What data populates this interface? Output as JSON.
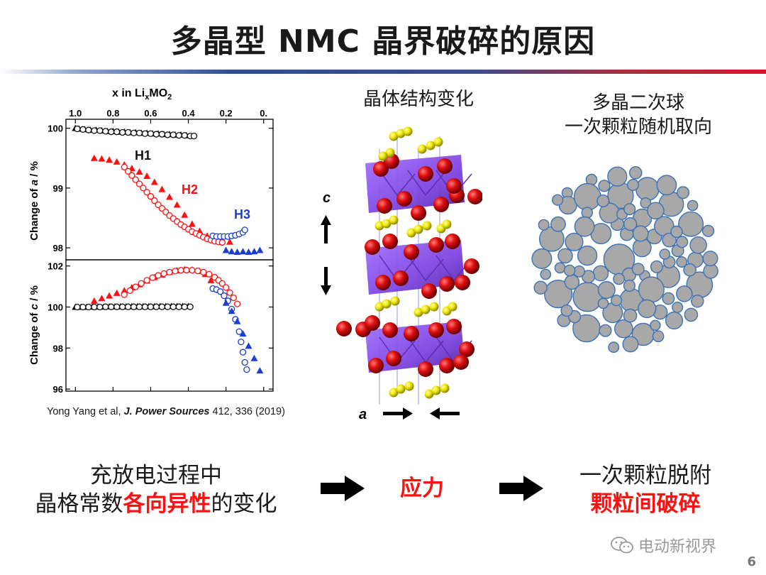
{
  "page": {
    "title": "多晶型 NMC 晶界破碎的原因",
    "page_number": "6"
  },
  "headings": {
    "crystal": "晶体结构变化",
    "poly_line1": "多晶二次球",
    "poly_line2": "一次颗粒随机取向"
  },
  "crystal_labels": {
    "c": "c",
    "a": "a"
  },
  "citation": {
    "authors": "Yong Yang et al, ",
    "journal": "J. Power Sources",
    "details": " 412, 336 (2019)"
  },
  "bottom": {
    "left_line1": "充放电过程中",
    "left_line2_pre": "晶格常数",
    "left_line2_red": "各向异性",
    "left_line2_post": "的变化",
    "middle": "应力",
    "right_line1": "一次颗粒脱附",
    "right_line2": "颗粒间破碎"
  },
  "watermark": "电动新视界",
  "colors": {
    "red": "#ff1010",
    "black_series": "#111111",
    "blue": "#1a3fd0",
    "sphere_fill": "#a8a8a8",
    "sphere_stroke": "#3a72b8"
  },
  "chart_data": [
    {
      "type": "scatter",
      "title": "",
      "top_axis_label_parts": [
        "x in Li",
        "x",
        "MO",
        "2"
      ],
      "x_ticks": [
        1.0,
        0.8,
        0.6,
        0.4,
        0.2,
        0.0
      ],
      "x_tick_labels": [
        "1.0",
        "0.8",
        "0.6",
        "0.4",
        "0.2",
        "0."
      ],
      "xlim": [
        1.05,
        -0.05
      ],
      "ylabel_parts": [
        "Change of ",
        "a",
        " / %"
      ],
      "ylim": [
        97.8,
        100.15
      ],
      "y_ticks": [
        98,
        99,
        100
      ],
      "annotations": [
        "H1",
        "H2",
        "H3"
      ],
      "series": [
        {
          "name": "H1",
          "marker": "triangle-filled",
          "color": "black",
          "x": [
            1.0,
            0.98,
            0.95,
            0.92,
            0.89,
            0.86,
            0.83,
            0.8,
            0.77,
            0.74,
            0.71,
            0.68,
            0.65,
            0.62,
            0.59,
            0.56,
            0.53,
            0.5,
            0.47,
            0.44,
            0.41
          ],
          "y": [
            100.0,
            99.99,
            99.98,
            99.97,
            99.97,
            99.96,
            99.95,
            99.95,
            99.94,
            99.94,
            99.93,
            99.93,
            99.92,
            99.92,
            99.91,
            99.91,
            99.9,
            99.9,
            99.89,
            99.89,
            99.88
          ]
        },
        {
          "name": "H1",
          "marker": "circle-open",
          "color": "black",
          "x": [
            0.99,
            0.96,
            0.93,
            0.9,
            0.87,
            0.84,
            0.81,
            0.78,
            0.75,
            0.72,
            0.69,
            0.66,
            0.63,
            0.6,
            0.57,
            0.54,
            0.51,
            0.48,
            0.45,
            0.42,
            0.39,
            0.37
          ],
          "y": [
            99.99,
            99.98,
            99.97,
            99.96,
            99.96,
            99.95,
            99.94,
            99.94,
            99.93,
            99.93,
            99.92,
            99.92,
            99.91,
            99.91,
            99.9,
            99.9,
            99.89,
            99.89,
            99.88,
            99.88,
            99.87,
            99.87
          ]
        },
        {
          "name": "H2",
          "marker": "triangle-filled",
          "color": "red",
          "x": [
            0.9,
            0.86,
            0.82,
            0.78,
            0.74,
            0.7,
            0.66,
            0.62,
            0.58,
            0.54,
            0.5,
            0.46,
            0.42,
            0.38,
            0.34,
            0.3,
            0.26,
            0.22,
            0.18
          ],
          "y": [
            99.5,
            99.49,
            99.47,
            99.44,
            99.39,
            99.33,
            99.27,
            99.2,
            99.1,
            98.98,
            98.85,
            98.72,
            98.55,
            98.4,
            98.28,
            98.2,
            98.15,
            98.12,
            98.1
          ]
        },
        {
          "name": "H2",
          "marker": "circle-open",
          "color": "red",
          "x": [
            0.74,
            0.72,
            0.7,
            0.68,
            0.66,
            0.64,
            0.62,
            0.6,
            0.58,
            0.56,
            0.54,
            0.52,
            0.5,
            0.48,
            0.46,
            0.44,
            0.42,
            0.4,
            0.38,
            0.36,
            0.34,
            0.32,
            0.3,
            0.28,
            0.26,
            0.24,
            0.22
          ],
          "y": [
            99.35,
            99.28,
            99.21,
            99.14,
            99.07,
            99.0,
            98.93,
            98.86,
            98.79,
            98.72,
            98.66,
            98.6,
            98.54,
            98.49,
            98.44,
            98.39,
            98.35,
            98.31,
            98.27,
            98.24,
            98.21,
            98.18,
            98.15,
            98.13,
            98.11,
            98.1,
            98.09
          ]
        },
        {
          "name": "H3",
          "marker": "circle-open",
          "color": "blue",
          "x": [
            0.27,
            0.25,
            0.23,
            0.21,
            0.19,
            0.17,
            0.15,
            0.13,
            0.11,
            0.1
          ],
          "y": [
            98.2,
            98.19,
            98.19,
            98.19,
            98.19,
            98.2,
            98.21,
            98.23,
            98.26,
            98.3
          ]
        },
        {
          "name": "H3",
          "marker": "triangle-filled",
          "color": "blue",
          "x": [
            0.2,
            0.17,
            0.14,
            0.11,
            0.08,
            0.05,
            0.02
          ],
          "y": [
            97.96,
            97.94,
            97.93,
            97.94,
            97.93,
            97.94,
            97.96
          ]
        }
      ]
    },
    {
      "type": "scatter",
      "title": "",
      "xlim": [
        1.05,
        -0.05
      ],
      "ylabel_parts": [
        "Change of ",
        "c",
        " / %"
      ],
      "ylim": [
        95.9,
        102.3
      ],
      "y_ticks": [
        96,
        98,
        100,
        102
      ],
      "series": [
        {
          "marker": "triangle-filled",
          "color": "black",
          "x": [
            1.0,
            0.97,
            0.94,
            0.91,
            0.88,
            0.85,
            0.82,
            0.79,
            0.76,
            0.73,
            0.7,
            0.67,
            0.64,
            0.61,
            0.58,
            0.55,
            0.52,
            0.49,
            0.46,
            0.43,
            0.4
          ],
          "y": [
            100.0,
            100.0,
            100.0,
            100.01,
            100.01,
            100.01,
            100.02,
            100.02,
            100.02,
            100.02,
            100.03,
            100.03,
            100.03,
            100.03,
            100.03,
            100.04,
            100.04,
            100.04,
            100.04,
            100.04,
            100.04
          ]
        },
        {
          "marker": "circle-open",
          "color": "black",
          "x": [
            0.99,
            0.96,
            0.93,
            0.9,
            0.87,
            0.84,
            0.81,
            0.78,
            0.75,
            0.72,
            0.69,
            0.66,
            0.63,
            0.6,
            0.57,
            0.54,
            0.51,
            0.48,
            0.45,
            0.42,
            0.39
          ],
          "y": [
            100.0,
            100.0,
            100.0,
            100.0,
            100.0,
            100.01,
            100.01,
            100.01,
            100.01,
            100.01,
            100.01,
            100.01,
            100.01,
            100.01,
            100.01,
            100.01,
            100.01,
            100.01,
            100.01,
            100.01,
            100.01
          ]
        },
        {
          "marker": "triangle-filled",
          "color": "red",
          "x": [
            0.9,
            0.86,
            0.82,
            0.78,
            0.74,
            0.7,
            0.66,
            0.62,
            0.58,
            0.54,
            0.5,
            0.46,
            0.42,
            0.38,
            0.34,
            0.31,
            0.28
          ],
          "y": [
            100.3,
            100.42,
            100.55,
            100.68,
            100.8,
            100.95,
            101.1,
            101.28,
            101.45,
            101.58,
            101.7,
            101.78,
            101.83,
            101.82,
            101.75,
            101.6,
            101.3
          ]
        },
        {
          "marker": "circle-open",
          "color": "red",
          "x": [
            0.74,
            0.71,
            0.68,
            0.65,
            0.62,
            0.59,
            0.56,
            0.53,
            0.5,
            0.47,
            0.44,
            0.41,
            0.38,
            0.35,
            0.32,
            0.29,
            0.26,
            0.24,
            0.22,
            0.2,
            0.18,
            0.16,
            0.14
          ],
          "y": [
            100.6,
            100.8,
            100.98,
            101.15,
            101.3,
            101.43,
            101.54,
            101.63,
            101.7,
            101.75,
            101.79,
            101.8,
            101.79,
            101.76,
            101.7,
            101.6,
            101.45,
            101.3,
            101.15,
            100.95,
            100.7,
            100.45,
            100.15
          ]
        },
        {
          "marker": "circle-open",
          "color": "blue",
          "x": [
            0.27,
            0.25,
            0.23,
            0.21,
            0.19,
            0.17,
            0.15,
            0.13,
            0.12,
            0.11,
            0.1,
            0.09
          ],
          "y": [
            100.9,
            100.85,
            100.75,
            100.55,
            100.3,
            99.9,
            99.4,
            98.8,
            98.3,
            97.8,
            97.3,
            96.95
          ]
        },
        {
          "marker": "triangle-filled",
          "color": "blue",
          "x": [
            0.2,
            0.17,
            0.14,
            0.11,
            0.08,
            0.05,
            0.02
          ],
          "y": [
            100.2,
            99.8,
            99.3,
            98.7,
            98.1,
            97.5,
            96.9
          ]
        }
      ]
    }
  ]
}
